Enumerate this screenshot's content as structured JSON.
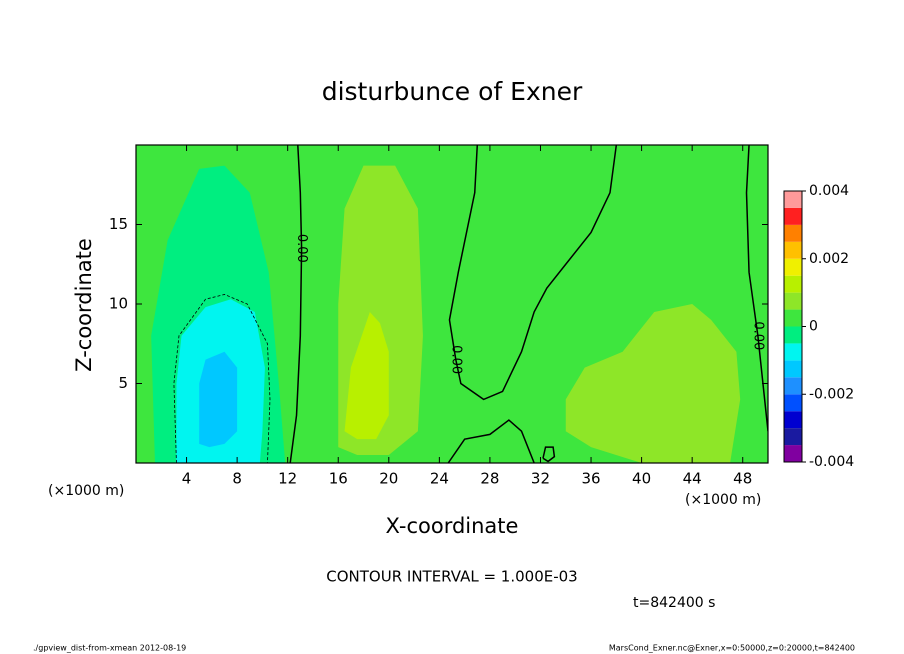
{
  "chart_data": {
    "type": "contour",
    "title": "disturbunce of Exner",
    "xlabel": "X-coordinate",
    "ylabel": "Z-coordinate",
    "unit_label": "(×1000 m)",
    "xlim": [
      0,
      50
    ],
    "ylim": [
      0,
      20
    ],
    "xticks": [
      4,
      8,
      12,
      16,
      20,
      24,
      28,
      32,
      36,
      40,
      44,
      48
    ],
    "yticks": [
      5,
      10,
      15
    ],
    "colorbar": {
      "lim": [
        -0.004,
        0.004
      ],
      "ticks": [
        -0.004,
        -0.002,
        0,
        0.002,
        0.004
      ],
      "bounds": [
        -0.004,
        -0.0035,
        -0.003,
        -0.0025,
        -0.002,
        -0.0015,
        -0.001,
        -0.0005,
        0,
        0.0005,
        0.001,
        0.0015,
        0.002,
        0.0025,
        0.003,
        0.0035,
        0.004
      ],
      "colors": [
        "#8000a0",
        "#1a1aa0",
        "#0000d0",
        "#0050ff",
        "#1e90ff",
        "#00c8ff",
        "#00f5f0",
        "#00ee80",
        "#3ee63e",
        "#8ee628",
        "#b8f000",
        "#f0f000",
        "#ffc000",
        "#ff8000",
        "#ff2020",
        "#ff9a9a"
      ]
    },
    "regions": [
      {
        "level": 0,
        "points": [
          [
            0,
            0
          ],
          [
            0,
            20
          ],
          [
            50,
            20
          ],
          [
            50,
            0
          ]
        ]
      },
      {
        "level": -0.0005,
        "points": [
          [
            1.5,
            0
          ],
          [
            1.2,
            8
          ],
          [
            2.5,
            14
          ],
          [
            5,
            18.5
          ],
          [
            7,
            18.7
          ],
          [
            9,
            17
          ],
          [
            10.5,
            12
          ],
          [
            11.3,
            5
          ],
          [
            11.8,
            0
          ]
        ]
      },
      {
        "level": -0.001,
        "points": [
          [
            3.2,
            0
          ],
          [
            3.2,
            5
          ],
          [
            3.6,
            8
          ],
          [
            5.5,
            9.8
          ],
          [
            7.5,
            10.3
          ],
          [
            9.4,
            9.5
          ],
          [
            10.2,
            6
          ],
          [
            10,
            2
          ],
          [
            9.8,
            0
          ]
        ]
      },
      {
        "level": -0.0015,
        "points": [
          [
            5,
            1.2
          ],
          [
            5,
            5
          ],
          [
            5.5,
            6.5
          ],
          [
            7,
            7
          ],
          [
            8,
            6
          ],
          [
            8,
            2
          ],
          [
            7,
            1.2
          ],
          [
            5.8,
            1
          ]
        ]
      },
      {
        "level": 0.0005,
        "points": [
          [
            16,
            1
          ],
          [
            16,
            10
          ],
          [
            16.5,
            16
          ],
          [
            18,
            18.7
          ],
          [
            20.5,
            18.7
          ],
          [
            22.3,
            16
          ],
          [
            22.7,
            8
          ],
          [
            22.3,
            2
          ],
          [
            20,
            0.5
          ],
          [
            17.5,
            0.5
          ]
        ]
      },
      {
        "level": 0.001,
        "points": [
          [
            16.5,
            2
          ],
          [
            17,
            6
          ],
          [
            18.5,
            9.5
          ],
          [
            19.3,
            8.8
          ],
          [
            20,
            7
          ],
          [
            20,
            3
          ],
          [
            19,
            1.5
          ],
          [
            17.5,
            1.5
          ]
        ]
      },
      {
        "level": 0.0005,
        "points": [
          [
            34,
            4
          ],
          [
            35.5,
            6
          ],
          [
            38.5,
            7
          ],
          [
            41,
            9.5
          ],
          [
            44,
            10
          ],
          [
            45.5,
            9
          ],
          [
            47.5,
            7
          ],
          [
            47.8,
            4
          ],
          [
            47,
            0
          ],
          [
            40,
            0
          ],
          [
            36,
            1
          ],
          [
            34,
            2
          ]
        ]
      }
    ],
    "contours": [
      {
        "level": 0,
        "label": "0.00",
        "points": [
          [
            12.2,
            0
          ],
          [
            12.7,
            3
          ],
          [
            13,
            8
          ],
          [
            13.1,
            13.5
          ],
          [
            13,
            17
          ],
          [
            12.8,
            20
          ]
        ]
      },
      {
        "level": 0,
        "label": "0.00",
        "points": [
          [
            27,
            20
          ],
          [
            26.8,
            17
          ],
          [
            25.5,
            12
          ],
          [
            24.8,
            9
          ],
          [
            25.3,
            6.5
          ],
          [
            25.7,
            5
          ],
          [
            27.5,
            4
          ],
          [
            29,
            4.5
          ],
          [
            30.5,
            7
          ],
          [
            31.5,
            9.5
          ],
          [
            32.5,
            11
          ],
          [
            34,
            12.5
          ],
          [
            36,
            14.5
          ],
          [
            37.5,
            17
          ],
          [
            38,
            20
          ]
        ]
      },
      {
        "level": 0,
        "points": [
          [
            24.7,
            0
          ],
          [
            26,
            1.5
          ],
          [
            28,
            1.8
          ],
          [
            29.5,
            2.7
          ],
          [
            30.5,
            2
          ],
          [
            31.5,
            0
          ]
        ]
      },
      {
        "level": 0,
        "points": [
          [
            32.2,
            0.3
          ],
          [
            32.4,
            1
          ],
          [
            33,
            1
          ],
          [
            33.1,
            0.4
          ],
          [
            32.6,
            0.1
          ],
          [
            32.2,
            0.3
          ]
        ]
      },
      {
        "level": 0,
        "label": "0.00",
        "points": [
          [
            48.5,
            20
          ],
          [
            48.3,
            17
          ],
          [
            48.5,
            12
          ],
          [
            49.2,
            8
          ],
          [
            49.4,
            6.5
          ],
          [
            49.6,
            5
          ],
          [
            50,
            2
          ]
        ]
      },
      {
        "level": -0.001,
        "points": [
          [
            3.2,
            0
          ],
          [
            3,
            5
          ],
          [
            3.4,
            8
          ],
          [
            5.5,
            10.3
          ],
          [
            7,
            10.6
          ],
          [
            8.8,
            10
          ],
          [
            10.4,
            7.5
          ],
          [
            10.6,
            4
          ],
          [
            10.4,
            0
          ]
        ]
      }
    ],
    "annotations": [
      "CONTOUR INTERVAL = 1.000E-03",
      "t=842400 s"
    ],
    "footer_left": "./gpview_dist-from-xmean  2012-08-19",
    "footer_right": "MarsCond_Exner.nc@Exner,x=0:50000,z=0:20000,t=842400"
  }
}
